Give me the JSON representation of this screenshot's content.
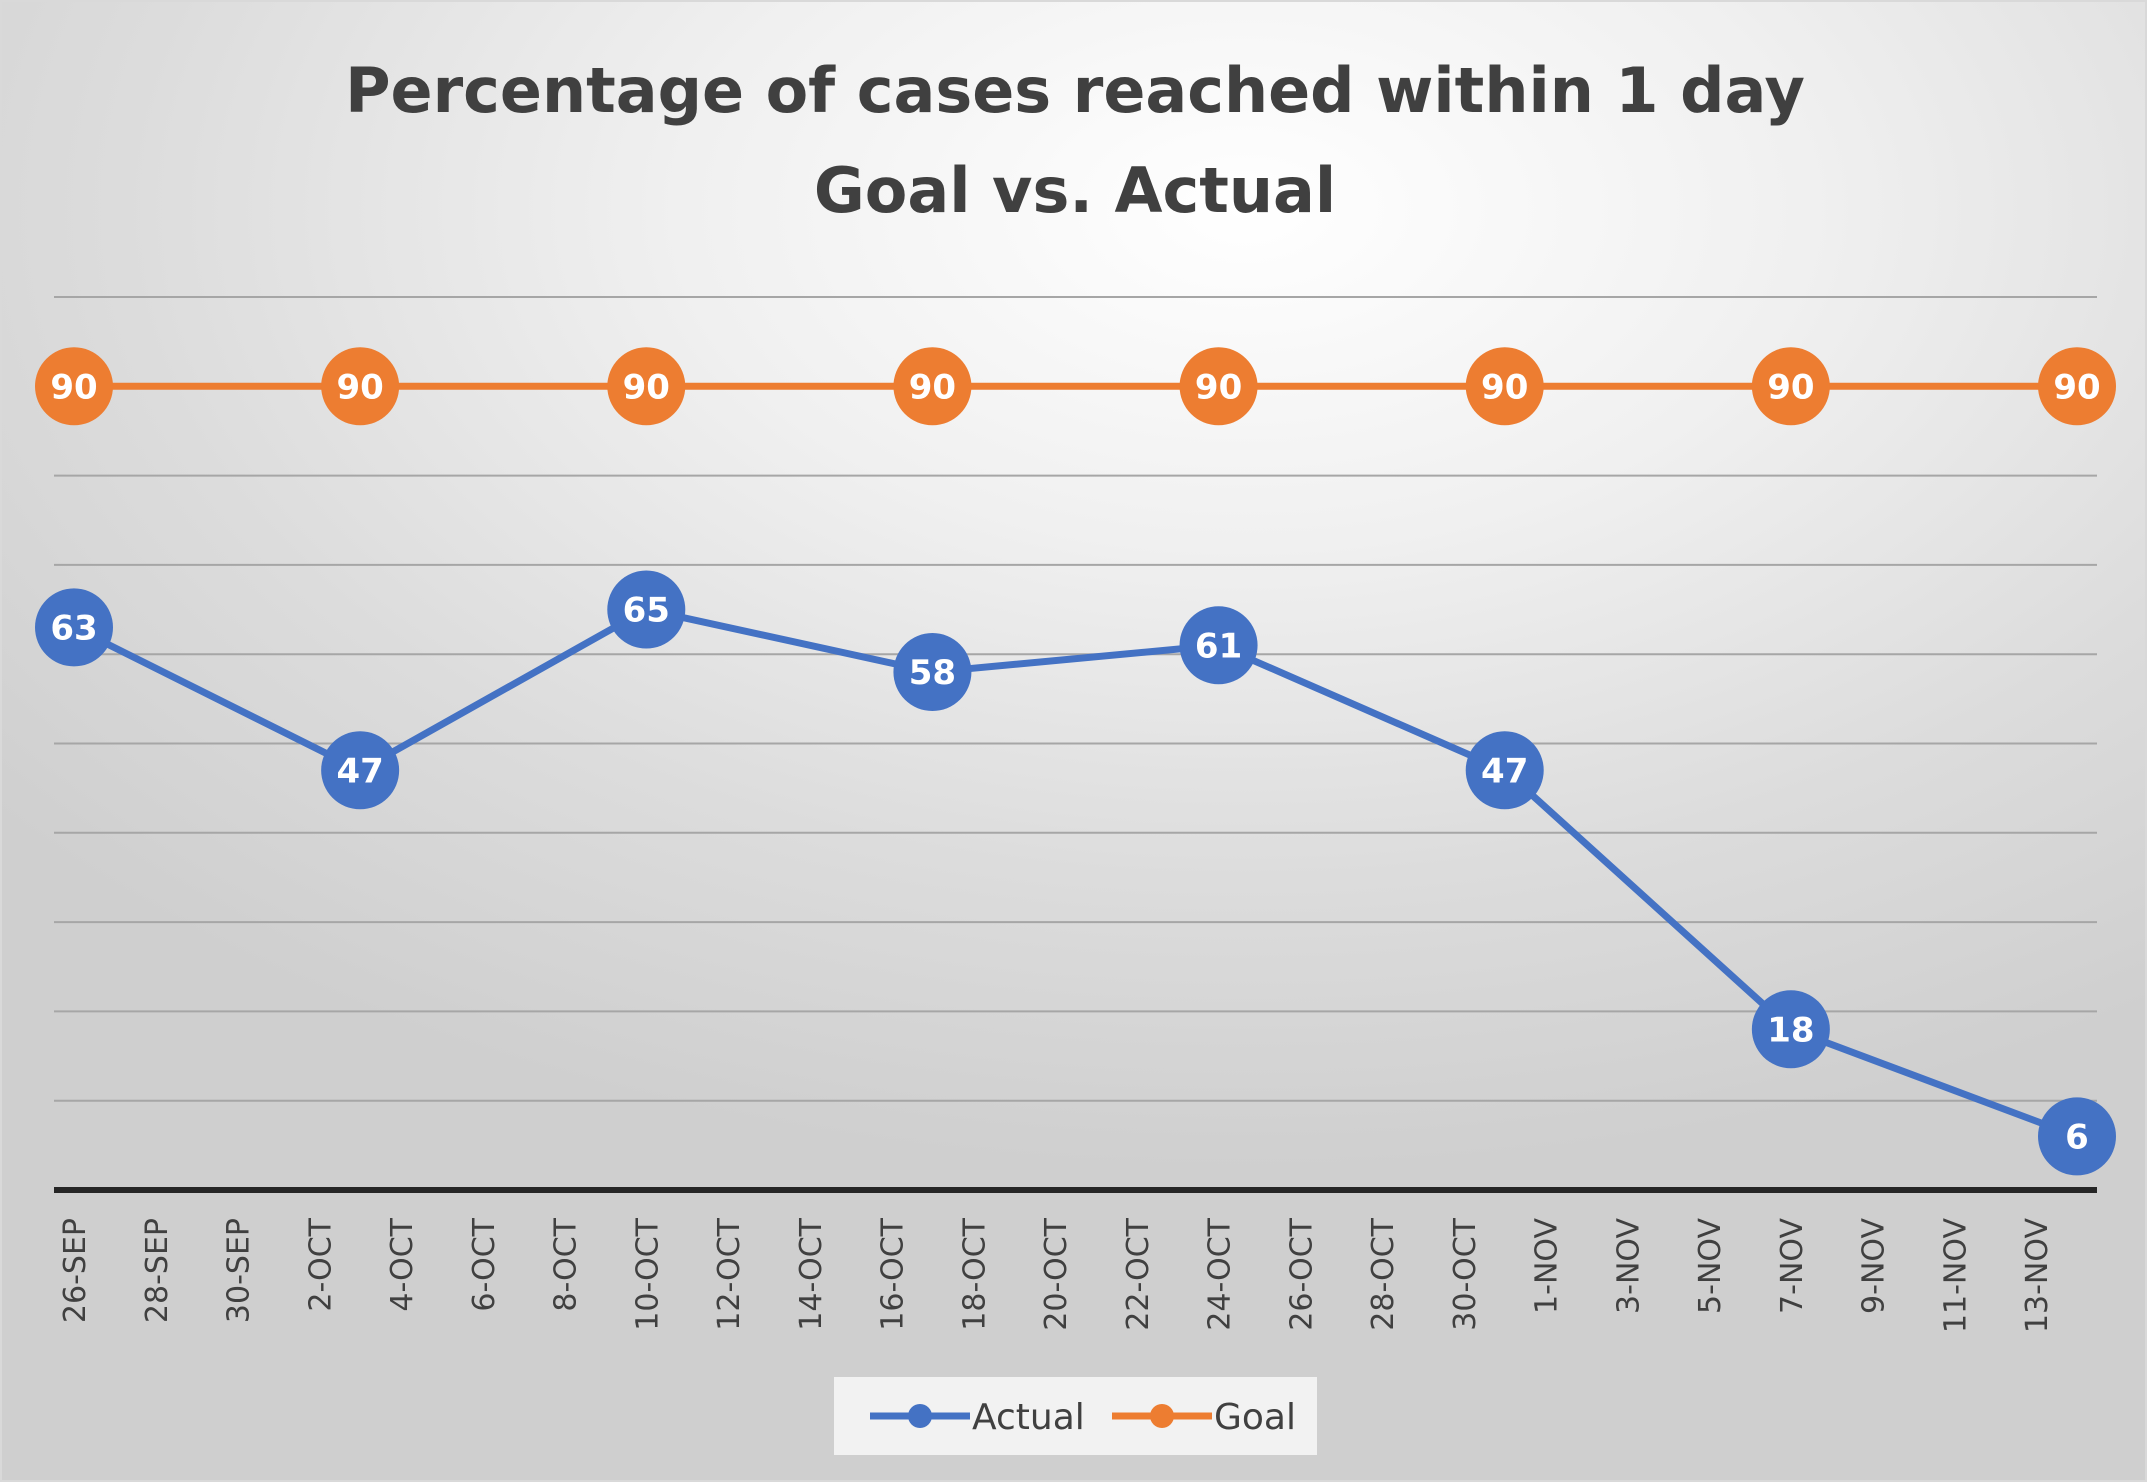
{
  "chart_data": {
    "type": "line",
    "title": [
      "Percentage of cases reached within 1 day",
      "Goal vs. Actual"
    ],
    "categories": [
      "26-SEP",
      "28-SEP",
      "30-SEP",
      "2-OCT",
      "4-OCT",
      "6-OCT",
      "8-OCT",
      "10-OCT",
      "12-OCT",
      "14-OCT",
      "16-OCT",
      "18-OCT",
      "20-OCT",
      "22-OCT",
      "24-OCT",
      "26-OCT",
      "28-OCT",
      "30-OCT",
      "1-NOV",
      "3-NOV",
      "5-NOV",
      "7-NOV",
      "9-NOV",
      "11-NOV",
      "13-NOV"
    ],
    "series": [
      {
        "name": "Actual",
        "color": "#4472c4",
        "points": [
          {
            "x": "26-SEP",
            "y": 63
          },
          {
            "x": "3-OCT",
            "y": 47
          },
          {
            "x": "10-OCT",
            "y": 65
          },
          {
            "x": "17-OCT",
            "y": 58
          },
          {
            "x": "24-OCT",
            "y": 61
          },
          {
            "x": "31-OCT",
            "y": 47
          },
          {
            "x": "7-NOV",
            "y": 18
          },
          {
            "x": "14-NOV",
            "y": 6
          }
        ]
      },
      {
        "name": "Goal",
        "color": "#ed7d31",
        "points": [
          {
            "x": "26-SEP",
            "y": 90
          },
          {
            "x": "3-OCT",
            "y": 90
          },
          {
            "x": "10-OCT",
            "y": 90
          },
          {
            "x": "17-OCT",
            "y": 90
          },
          {
            "x": "24-OCT",
            "y": 90
          },
          {
            "x": "31-OCT",
            "y": 90
          },
          {
            "x": "7-NOV",
            "y": 90
          },
          {
            "x": "14-NOV",
            "y": 90
          }
        ]
      }
    ],
    "ylim": [
      0,
      100
    ],
    "y_gridline_step": 10,
    "y_tick_labels_shown": false,
    "grid": true,
    "data_labels": true,
    "legend_position": "bottom"
  }
}
